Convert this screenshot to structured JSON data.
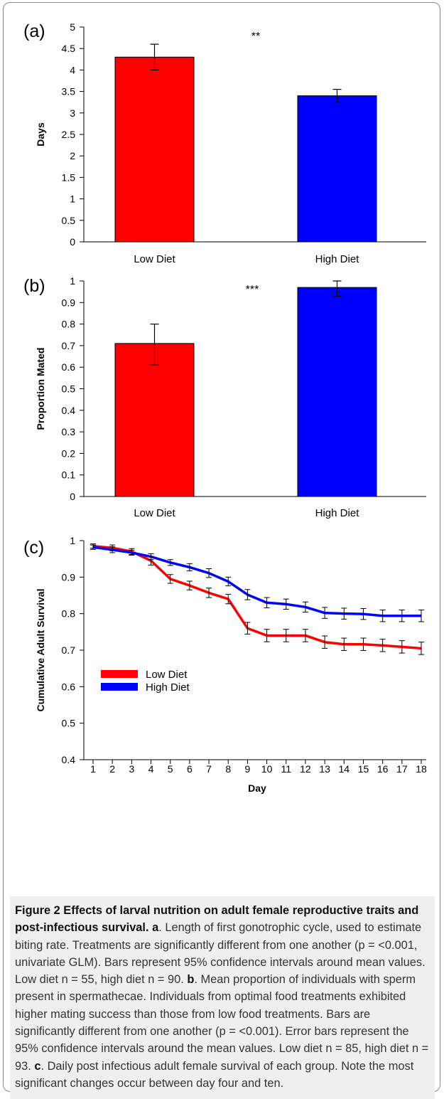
{
  "chart_data": [
    {
      "panel": "(a)",
      "type": "bar",
      "categories": [
        "Low Diet",
        "High Diet"
      ],
      "values": [
        4.3,
        3.4
      ],
      "errors": [
        [
          4.0,
          4.6
        ],
        [
          3.25,
          3.55
        ]
      ],
      "colors": [
        "#ff0000",
        "#0000ff"
      ],
      "ylabel": "Days",
      "ylim": [
        0,
        5
      ],
      "yticks": [
        0,
        0.5,
        1,
        1.5,
        2,
        2.5,
        3,
        3.5,
        4,
        4.5,
        5
      ],
      "annotation": "**",
      "grid": false
    },
    {
      "panel": "(b)",
      "type": "bar",
      "categories": [
        "Low Diet",
        "High Diet"
      ],
      "values": [
        0.71,
        0.97
      ],
      "errors": [
        [
          0.61,
          0.8
        ],
        [
          0.93,
          1.0
        ]
      ],
      "colors": [
        "#ff0000",
        "#0000ff"
      ],
      "ylabel": "Proportion Mated",
      "ylim": [
        0,
        1
      ],
      "yticks": [
        0,
        0.1,
        0.2,
        0.3,
        0.4,
        0.5,
        0.6,
        0.7,
        0.8,
        0.9,
        1
      ],
      "annotation": "***",
      "grid": false
    },
    {
      "panel": "(c)",
      "type": "line",
      "x": [
        1,
        2,
        3,
        4,
        5,
        6,
        7,
        8,
        9,
        10,
        11,
        12,
        13,
        14,
        15,
        16,
        17,
        18
      ],
      "xlabel": "Day",
      "ylabel": "Cumulative Adult Survival",
      "ylim": [
        0.4,
        1
      ],
      "yticks": [
        0.4,
        0.5,
        0.6,
        0.7,
        0.8,
        0.9,
        1
      ],
      "legend": "left",
      "grid": false,
      "series": [
        {
          "name": "Low Diet",
          "color": "#ff0000",
          "values": [
            0.985,
            0.98,
            0.97,
            0.945,
            0.895,
            0.877,
            0.857,
            0.84,
            0.76,
            0.74,
            0.74,
            0.74,
            0.722,
            0.716,
            0.716,
            0.713,
            0.709,
            0.705
          ],
          "err": [
            0.006,
            0.008,
            0.008,
            0.012,
            0.012,
            0.012,
            0.013,
            0.013,
            0.016,
            0.017,
            0.017,
            0.017,
            0.017,
            0.017,
            0.017,
            0.017,
            0.017,
            0.017
          ]
        },
        {
          "name": "High Diet",
          "color": "#0000ff",
          "values": [
            0.982,
            0.975,
            0.967,
            0.956,
            0.94,
            0.927,
            0.911,
            0.888,
            0.852,
            0.83,
            0.826,
            0.818,
            0.802,
            0.8,
            0.799,
            0.794,
            0.794,
            0.794
          ],
          "err": [
            0.006,
            0.008,
            0.007,
            0.008,
            0.008,
            0.01,
            0.012,
            0.012,
            0.014,
            0.014,
            0.014,
            0.014,
            0.015,
            0.015,
            0.015,
            0.016,
            0.016,
            0.016
          ]
        }
      ]
    }
  ],
  "caption": {
    "heading": "Figure 2 Effects of larval nutrition on adult female reproductive traits and post-infectious survival.",
    "a_label": "a",
    "a_text": ". Length of first gonotrophic cycle, used to estimate biting rate. Treatments are significantly different from one another (p = <0.001, univariate GLM). Bars represent 95% confidence intervals around mean values. Low diet n = 55, high diet n = 90.",
    "b_label": "b",
    "b_text": ". Mean proportion of individuals with sperm present in spermathecae. Individuals from optimal food treatments exhibited higher mating success than those from low food treatments. Bars are significantly different from one another (p = <0.001). Error bars represent the 95% confidence intervals around the mean values. Low diet n = 85, high diet n = 93.",
    "c_label": "c",
    "c_text": ". Daily post infectious adult female survival of each group. Note the most significant changes occur between day four and ten."
  }
}
